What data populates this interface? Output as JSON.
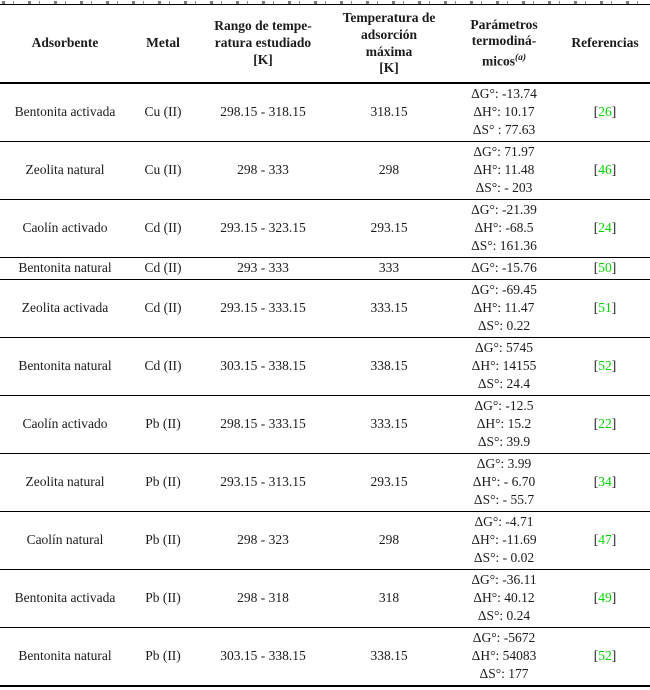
{
  "brackets": {
    "open": "[",
    "close": "]"
  },
  "headers": {
    "adsorbent": "Adsorbente",
    "metal": "Metal",
    "range_lines": [
      "Rango de tempe-",
      "ratura estudiado",
      "[K]"
    ],
    "tmax_lines": [
      "Temperatura de",
      "adsorción",
      "máxima",
      "[K]"
    ],
    "params_lines": [
      "Parámetros",
      "termodiná-"
    ],
    "params_line3_base": "micos",
    "params_superscript": "(a)",
    "references": "Referencias"
  },
  "rows": [
    {
      "adsorbent": "Bentonita activada",
      "metal": "Cu (II)",
      "range": "298.15 - 318.15",
      "t_max": "318.15",
      "params": [
        "ΔG°: -13.74",
        "ΔH°: 10.17",
        "ΔS° : 77.63"
      ],
      "ref": "26"
    },
    {
      "adsorbent": "Zeolita natural",
      "metal": "Cu (II)",
      "range": "298 - 333",
      "t_max": "298",
      "params": [
        "ΔG°: 71.97",
        "ΔH°: 11.48",
        "ΔS°: - 203"
      ],
      "ref": "46"
    },
    {
      "adsorbent": "Caolín activado",
      "metal": "Cd (II)",
      "range": "293.15 - 323.15",
      "t_max": "293.15",
      "params": [
        "ΔG°: -21.39",
        "ΔH°: -68.5",
        "ΔS°: 161.36"
      ],
      "ref": "24"
    },
    {
      "adsorbent": "Bentonita natural",
      "metal": "Cd (II)",
      "range": "293 - 333",
      "t_max": "333",
      "params": [
        "ΔG°: -15.76"
      ],
      "ref": "50"
    },
    {
      "adsorbent": "Zeolita activada",
      "metal": "Cd (II)",
      "range": "293.15 - 333.15",
      "t_max": "333.15",
      "params": [
        "ΔG°: -69.45",
        "ΔH°: 11.47",
        "ΔS°: 0.22"
      ],
      "ref": "51"
    },
    {
      "adsorbent": "Bentonita natural",
      "metal": "Cd (II)",
      "range": "303.15 - 338.15",
      "t_max": "338.15",
      "params": [
        "ΔG°: 5745",
        "ΔH°: 14155",
        "ΔS°: 24.4"
      ],
      "ref": "52"
    },
    {
      "adsorbent": "Caolín activado",
      "metal": "Pb (II)",
      "range": "298.15 - 333.15",
      "t_max": "333.15",
      "params": [
        "ΔG°: -12.5",
        "ΔH°: 15.2",
        "ΔS°: 39.9"
      ],
      "ref": "22"
    },
    {
      "adsorbent": "Zeolita natural",
      "metal": "Pb (II)",
      "range": "293.15 - 313.15",
      "t_max": "293.15",
      "params": [
        "ΔG°: 3.99",
        "ΔH°: - 6.70",
        "ΔS°: - 55.7"
      ],
      "ref": "34"
    },
    {
      "adsorbent": "Caolín natural",
      "metal": "Pb (II)",
      "range": "298 - 323",
      "t_max": "298",
      "params": [
        "ΔG°: -4.71",
        "ΔH°: -11.69",
        "ΔS°: - 0.02"
      ],
      "ref": "47"
    },
    {
      "adsorbent": "Bentonita activada",
      "metal": "Pb (II)",
      "range": "298 - 318",
      "t_max": "318",
      "params": [
        "ΔG°: -36.11",
        "ΔH°: 40.12",
        "ΔS°: 0.24"
      ],
      "ref": "49"
    },
    {
      "adsorbent": "Bentonita natural",
      "metal": "Pb (II)",
      "range": "303.15 - 338.15",
      "t_max": "338.15",
      "params": [
        "ΔG°: -5672",
        "ΔH°: 54083",
        "ΔS°: 177"
      ],
      "ref": "52"
    }
  ]
}
